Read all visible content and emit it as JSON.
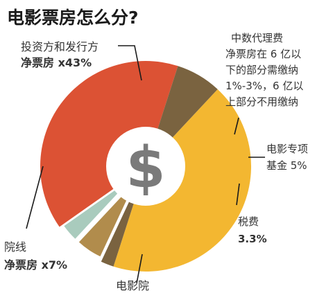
{
  "chart_data": {
    "type": "pie",
    "title": "电影票房怎么分?",
    "center_symbol": "$",
    "slices": [
      {
        "name": "投资方和发行方净票房",
        "value": 43,
        "color": "#f3b731",
        "label_lines": [
          "投资方和发行方",
          "净票房 x43%"
        ]
      },
      {
        "name": "中数代理费",
        "value": 2,
        "color": "#7a6340",
        "label_lines": [
          "中数代理费",
          "净票房在 6 亿以",
          "下的部分需缴纳",
          "1%-3%，6 亿以",
          "上部分不用缴纳"
        ]
      },
      {
        "name": "电影专项基金",
        "value": 5,
        "color": "#b18c4c",
        "exploded": true,
        "label_lines": [
          "电影专项",
          "基金 5%"
        ]
      },
      {
        "name": "税费",
        "value": 3.3,
        "color": "#a9cbbd",
        "exploded": true,
        "label_lines": [
          "税费",
          "3.3%"
        ]
      },
      {
        "name": "电影院",
        "value": 39.7,
        "color": "#dc5234",
        "label_lines": [
          "电影院"
        ]
      },
      {
        "name": "院线净票房",
        "value": 7,
        "color": "#7a6340",
        "label_lines": [
          "院线",
          "净票房 x7%"
        ]
      }
    ]
  }
}
